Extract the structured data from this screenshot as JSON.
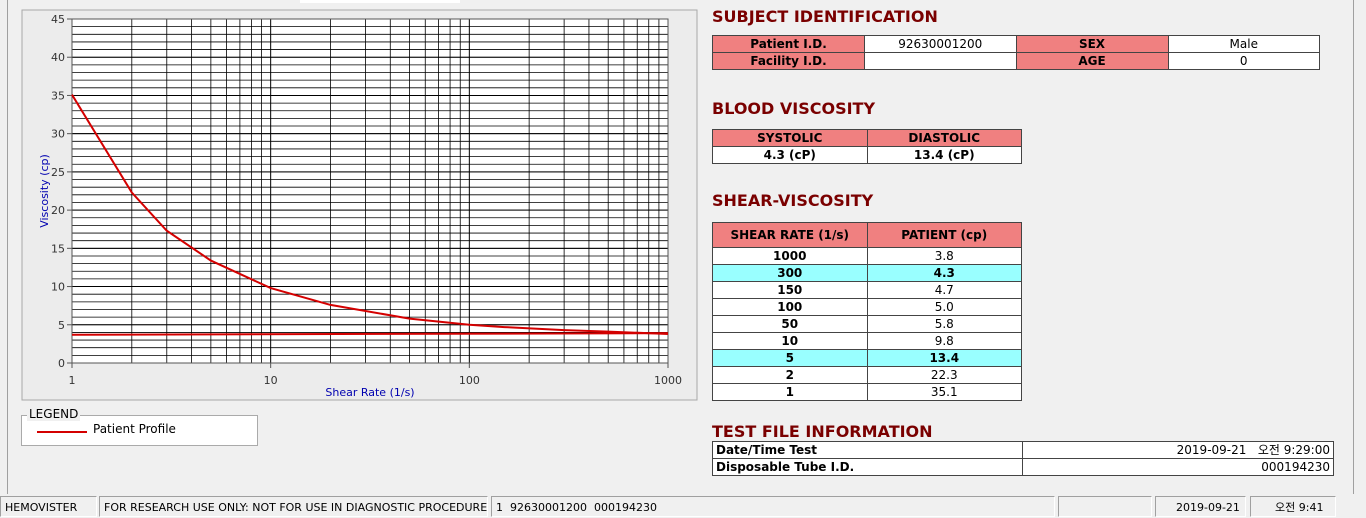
{
  "chart_data": {
    "type": "line",
    "x_label": "Shear Rate (1/s)",
    "y_label": "Viscosity (cp)",
    "x_scale": "log",
    "xlim": [
      1,
      1000
    ],
    "xticks": [
      1,
      10,
      100,
      1000
    ],
    "ylim": [
      0,
      45
    ],
    "yticks": [
      0,
      5,
      10,
      15,
      20,
      25,
      30,
      35,
      40,
      45
    ],
    "grid": true,
    "minor_grid": true,
    "legend_title": "LEGEND",
    "series": [
      {
        "name": "Patient Profile",
        "color": "#d40000",
        "x": [
          1,
          2,
          3,
          5,
          10,
          20,
          50,
          100,
          150,
          300,
          500,
          1000
        ],
        "values": [
          35.1,
          22.3,
          17.3,
          13.4,
          9.8,
          7.6,
          5.8,
          5.0,
          4.7,
          4.3,
          4.1,
          3.8
        ]
      },
      {
        "color": "#d40000",
        "x": [
          1,
          1000
        ],
        "values": [
          3.7,
          3.9
        ]
      }
    ]
  },
  "subject": {
    "title": "SUBJECT IDENTIFICATION",
    "patient_label": "Patient I.D.",
    "patient_id": "92630001200",
    "sex_label": "SEX",
    "sex": "Male",
    "facility_label": "Facility I.D.",
    "age_label": "AGE",
    "age": "0"
  },
  "blood_viscosity": {
    "title": "BLOOD VISCOSITY",
    "headers": [
      "SYSTOLIC",
      "DIASTOLIC"
    ],
    "values": [
      "4.3 (cP)",
      "13.4 (cP)"
    ]
  },
  "shear_viscosity": {
    "title": "SHEAR-VISCOSITY",
    "headers": [
      "SHEAR RATE (1/s)",
      "PATIENT (cp)"
    ],
    "rows": [
      {
        "rate": "1000",
        "patient": "3.8"
      },
      {
        "rate": "300",
        "patient": "4.3",
        "highlighted": true
      },
      {
        "rate": "150",
        "patient": "4.7"
      },
      {
        "rate": "100",
        "patient": "5.0"
      },
      {
        "rate": "50",
        "patient": "5.8"
      },
      {
        "rate": "10",
        "patient": "9.8"
      },
      {
        "rate": "5",
        "patient": "13.4",
        "highlighted": true
      },
      {
        "rate": "2",
        "patient": "22.3"
      },
      {
        "rate": "1",
        "patient": "35.1"
      }
    ]
  },
  "test_file": {
    "title": "TEST FILE INFORMATION",
    "date_label": "Date/Time Test",
    "date": "2019-09-21   오전 9:29:00",
    "tube_label": "Disposable Tube I.D.",
    "tube": "000194230"
  },
  "status_bar": {
    "app": "HEMOVISTER",
    "notice": "FOR RESEARCH USE ONLY: NOT FOR USE IN DIAGNOSTIC PROCEDURES",
    "record": "1  92630001200  000194230",
    "date": "2019-09-21",
    "time": "오전 9:41"
  }
}
